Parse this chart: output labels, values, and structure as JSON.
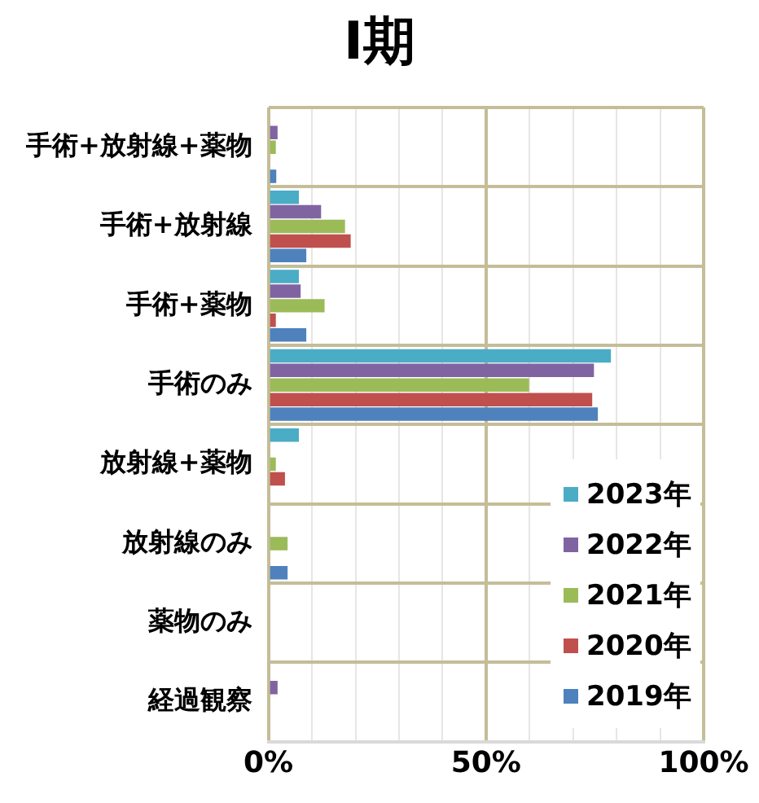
{
  "chart_data": {
    "type": "bar",
    "orientation": "horizontal",
    "title": "Ⅰ期",
    "categories": [
      "手術+放射線+薬物",
      "手術+放射線",
      "手術+薬物",
      "手術のみ",
      "放射線+薬物",
      "放射線のみ",
      "薬物のみ",
      "経過観察"
    ],
    "series": [
      {
        "name": "2023年",
        "color": "#4bacc6",
        "values": [
          0,
          7.0,
          7.0,
          78.7,
          7.0,
          0,
          0,
          0
        ]
      },
      {
        "name": "2022年",
        "color": "#8064a2",
        "values": [
          2.1,
          12.1,
          7.4,
          74.8,
          0,
          0,
          0,
          2.1
        ]
      },
      {
        "name": "2021年",
        "color": "#9bbb59",
        "values": [
          1.7,
          17.6,
          12.9,
          59.9,
          1.7,
          4.4,
          0,
          0
        ]
      },
      {
        "name": "2020年",
        "color": "#c0504d",
        "values": [
          0,
          18.9,
          1.7,
          74.4,
          3.8,
          0,
          0,
          0
        ]
      },
      {
        "name": "2019年",
        "color": "#4f81bd",
        "values": [
          1.8,
          8.7,
          8.7,
          75.7,
          0,
          4.4,
          0,
          0
        ]
      }
    ],
    "xlim": [
      0,
      100
    ],
    "xticks": [
      {
        "value": 0,
        "label": "0%"
      },
      {
        "value": 10,
        "label": null
      },
      {
        "value": 20,
        "label": null
      },
      {
        "value": 30,
        "label": null
      },
      {
        "value": 40,
        "label": null
      },
      {
        "value": 50,
        "label": "50%"
      },
      {
        "value": 60,
        "label": null
      },
      {
        "value": 70,
        "label": null
      },
      {
        "value": 80,
        "label": null
      },
      {
        "value": 90,
        "label": null
      },
      {
        "value": 100,
        "label": "100%"
      }
    ],
    "grid": true,
    "legend": "bottom right"
  }
}
